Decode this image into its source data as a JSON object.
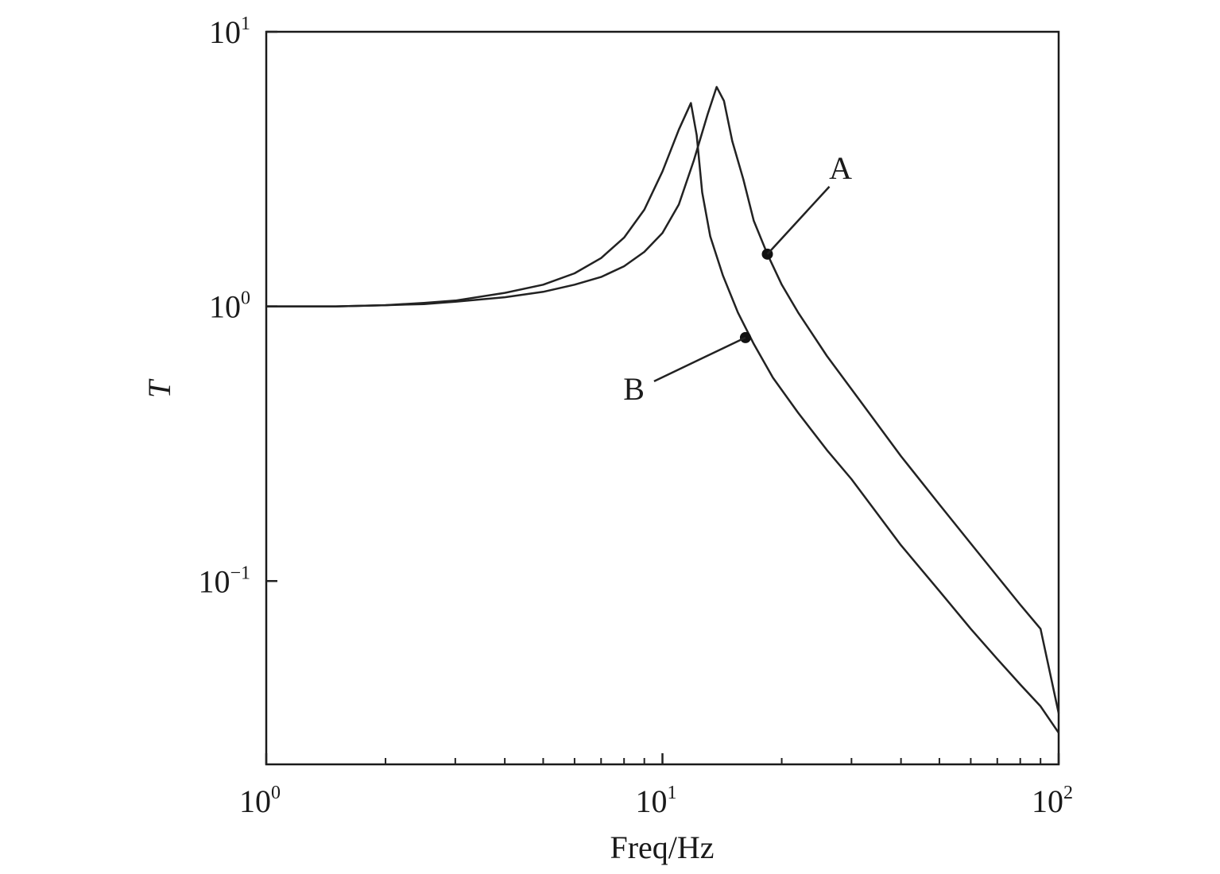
{
  "chart_data": {
    "type": "line",
    "xlabel": "Freq/Hz",
    "ylabel": "T",
    "xscale": "log",
    "yscale": "log",
    "xlim": [
      1,
      100
    ],
    "ylim": [
      0.0215,
      10
    ],
    "xticks": [
      {
        "value": 1,
        "base": "10",
        "exp": "0"
      },
      {
        "value": 10,
        "base": "10",
        "exp": "1"
      },
      {
        "value": 100,
        "base": "10",
        "exp": "2"
      }
    ],
    "yticks": [
      {
        "value": 10,
        "base": "10",
        "exp": "1"
      },
      {
        "value": 1,
        "base": "10",
        "exp": "0"
      },
      {
        "value": 0.1,
        "base": "10",
        "exp": "−1"
      }
    ],
    "grid": false,
    "legend": "none",
    "line_color": "#222222",
    "series": [
      {
        "x": [
          1,
          1.5,
          2,
          2.5,
          3,
          4,
          5,
          6,
          7,
          8,
          9,
          10,
          11,
          11.8,
          12.2,
          12.6,
          13.2,
          14.2,
          15.5,
          17,
          19,
          22,
          26,
          30,
          40,
          50,
          60,
          70,
          80,
          90,
          100
        ],
        "y": [
          1.0,
          1.0,
          1.01,
          1.03,
          1.05,
          1.12,
          1.2,
          1.32,
          1.5,
          1.78,
          2.25,
          3.1,
          4.4,
          5.5,
          4.2,
          2.6,
          1.8,
          1.3,
          0.95,
          0.73,
          0.55,
          0.41,
          0.3,
          0.235,
          0.135,
          0.092,
          0.067,
          0.052,
          0.042,
          0.035,
          0.028
        ]
      },
      {
        "x": [
          1,
          1.5,
          2,
          2.5,
          3,
          4,
          5,
          6,
          7,
          8,
          9,
          10,
          11,
          12,
          13,
          13.7,
          14.3,
          15,
          16,
          17,
          18.4,
          20,
          22,
          26,
          30,
          40,
          50,
          60,
          70,
          80,
          90,
          100
        ],
        "y": [
          1.0,
          1.0,
          1.01,
          1.02,
          1.04,
          1.08,
          1.13,
          1.2,
          1.28,
          1.4,
          1.58,
          1.85,
          2.35,
          3.4,
          5.0,
          6.3,
          5.6,
          4.0,
          2.9,
          2.05,
          1.55,
          1.2,
          0.95,
          0.66,
          0.5,
          0.285,
          0.19,
          0.137,
          0.104,
          0.082,
          0.067,
          0.033
        ]
      }
    ],
    "annotations": [
      {
        "text": "A",
        "x": 18.4,
        "y": 1.55
      },
      {
        "text": "B",
        "x": 16.2,
        "y": 0.77
      }
    ]
  }
}
